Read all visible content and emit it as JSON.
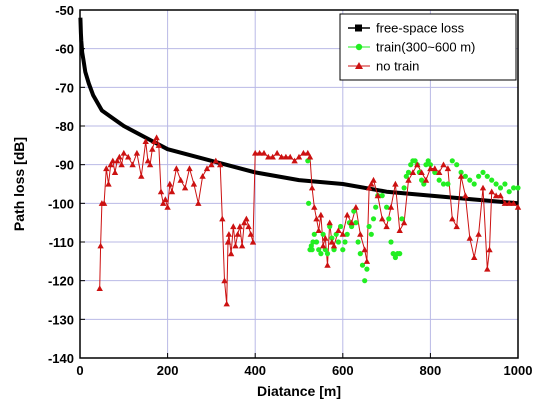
{
  "chart_data": {
    "type": "scatter",
    "title": "",
    "xlabel": "Diatance [m]",
    "ylabel": "Path loss [dB]",
    "xlim": [
      0,
      1000
    ],
    "ylim": [
      -140,
      -50
    ],
    "xticks": [
      0,
      200,
      400,
      600,
      800,
      1000
    ],
    "yticks": [
      -140,
      -130,
      -120,
      -110,
      -100,
      -90,
      -80,
      -70,
      -60,
      -50
    ],
    "grid": true,
    "legend_position": "top-right",
    "series": [
      {
        "name": "free-space loss",
        "style": "line",
        "color": "#000000",
        "x": [
          1,
          2,
          3,
          5,
          8,
          12,
          20,
          30,
          50,
          75,
          100,
          150,
          200,
          300,
          400,
          500,
          600,
          700,
          800,
          900,
          1000
        ],
        "values": [
          -52,
          -56,
          -58,
          -61,
          -63,
          -66,
          -69,
          -72,
          -76,
          -78,
          -80,
          -83,
          -86,
          -89,
          -92,
          -94,
          -95,
          -97,
          -98,
          -99,
          -100
        ]
      },
      {
        "name": "train(300~600 m)",
        "style": "dots",
        "color": "#22ee22",
        "x": [
          520,
          522,
          525,
          528,
          530,
          532,
          535,
          540,
          545,
          550,
          555,
          560,
          565,
          570,
          575,
          580,
          585,
          590,
          595,
          600,
          605,
          610,
          615,
          620,
          625,
          630,
          635,
          640,
          645,
          650,
          655,
          660,
          665,
          670,
          675,
          680,
          690,
          700,
          705,
          710,
          715,
          720,
          725,
          730,
          735,
          740,
          745,
          750,
          755,
          760,
          765,
          770,
          775,
          780,
          785,
          790,
          795,
          800,
          810,
          820,
          830,
          840,
          850,
          860,
          870,
          880,
          890,
          900,
          910,
          920,
          930,
          940,
          950,
          960,
          970,
          980,
          990,
          1000
        ],
        "values": [
          -89,
          -100,
          -112,
          -111,
          -112,
          -110,
          -108,
          -110,
          -112,
          -113,
          -108,
          -112,
          -113,
          -106,
          -109,
          -112,
          -108,
          -110,
          -106,
          -112,
          -110,
          -108,
          -105,
          -106,
          -102,
          -105,
          -110,
          -113,
          -116,
          -120,
          -117,
          -106,
          -108,
          -104,
          -101,
          -98,
          -98,
          -101,
          -104,
          -110,
          -113,
          -114,
          -113,
          -113,
          -104,
          -96,
          -93,
          -92,
          -90,
          -89,
          -89,
          -90,
          -92,
          -94,
          -95,
          -90,
          -89,
          -90,
          -92,
          -94,
          -95,
          -95,
          -89,
          -90,
          -92,
          -93,
          -94,
          -95,
          -93,
          -92,
          -93,
          -94,
          -95,
          -96,
          -95,
          -97,
          -96,
          -96
        ]
      },
      {
        "name": "no train",
        "style": "line-triangles",
        "color": "#cc1111",
        "x": [
          45,
          47,
          50,
          55,
          60,
          65,
          70,
          75,
          80,
          85,
          90,
          95,
          100,
          110,
          120,
          130,
          140,
          150,
          155,
          160,
          165,
          170,
          175,
          180,
          185,
          190,
          195,
          200,
          205,
          210,
          220,
          230,
          240,
          250,
          260,
          270,
          280,
          290,
          300,
          310,
          320,
          325,
          330,
          335,
          338,
          340,
          345,
          350,
          355,
          360,
          365,
          370,
          375,
          380,
          385,
          390,
          395,
          400,
          410,
          420,
          430,
          440,
          450,
          460,
          470,
          480,
          490,
          500,
          510,
          520,
          525,
          530,
          535,
          540,
          545,
          550,
          555,
          560,
          565,
          570,
          575,
          580,
          590,
          600,
          610,
          620,
          630,
          640,
          650,
          655,
          660,
          665,
          670,
          680,
          690,
          700,
          710,
          720,
          730,
          740,
          750,
          760,
          770,
          780,
          790,
          800,
          810,
          820,
          830,
          840,
          850,
          860,
          870,
          880,
          890,
          900,
          910,
          920,
          930,
          935,
          940,
          950,
          960,
          970,
          980,
          990,
          1000
        ],
        "values": [
          -122,
          -111,
          -100,
          -100,
          -91,
          -95,
          -90,
          -89,
          -92,
          -89,
          -88,
          -90,
          -87,
          -88,
          -90,
          -87,
          -93,
          -84,
          -89,
          -90,
          -86,
          -84,
          -83,
          -85,
          -97,
          -100,
          -99,
          -101,
          -95,
          -97,
          -91,
          -94,
          -96,
          -91,
          -95,
          -100,
          -93,
          -91,
          -90,
          -89,
          -90,
          -104,
          -120,
          -126,
          -110,
          -108,
          -113,
          -106,
          -111,
          -108,
          -106,
          -111,
          -105,
          -104,
          -106,
          -108,
          -110,
          -87,
          -87,
          -87,
          -88,
          -88,
          -87,
          -88,
          -88,
          -88,
          -89,
          -88,
          -87,
          -87,
          -88,
          -96,
          -101,
          -104,
          -107,
          -103,
          -111,
          -109,
          -116,
          -105,
          -110,
          -111,
          -107,
          -108,
          -103,
          -105,
          -101,
          -108,
          -112,
          -115,
          -96,
          -95,
          -94,
          -98,
          -104,
          -106,
          -101,
          -95,
          -107,
          -105,
          -94,
          -92,
          -90,
          -92,
          -94,
          -91,
          -91,
          -92,
          -90,
          -91,
          -104,
          -106,
          -93,
          -98,
          -109,
          -114,
          -108,
          -96,
          -117,
          -112,
          -97,
          -98,
          -98,
          -100,
          -100,
          -100,
          -101
        ]
      }
    ]
  }
}
